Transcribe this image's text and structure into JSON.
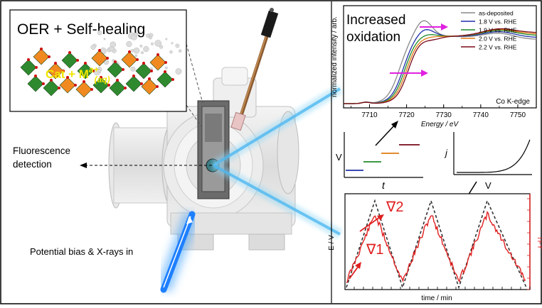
{
  "inset": {
    "title": "OER + Self-healing",
    "formula_cat": "Cat + M",
    "formula_sup": "a+",
    "formula_sub": "(aq)"
  },
  "labels": {
    "fluorescence": [
      "Fluorescence",
      "detection"
    ],
    "bias": "Potential bias & X-rays in"
  },
  "xanes": {
    "annotation": [
      "Increased",
      "oxidation"
    ],
    "ylabel": "normalized intensity / arb.",
    "xlabel": "Energy / eV",
    "edge": "Co K-edge",
    "xticks": [
      "7710",
      "7720",
      "7730",
      "7740",
      "7750"
    ],
    "legend": [
      {
        "name": "as-deposited",
        "color": "#888888"
      },
      {
        "name": "1.8 V vs. RHE",
        "color": "#1f2fa8"
      },
      {
        "name": "1.9 V vs. RHE",
        "color": "#1f8a2a"
      },
      {
        "name": "2.0 V vs. RHE",
        "color": "#e07a10"
      },
      {
        "name": "2.2 V vs. RHE",
        "color": "#7a0a1a"
      }
    ]
  },
  "steps": {
    "ylabel": "V",
    "xlabel": "t",
    "colors": [
      "#1f2fa8",
      "#1f8a2a",
      "#e07a10",
      "#7a0a1a"
    ]
  },
  "iv": {
    "ylabel": "j",
    "xlabel": "V"
  },
  "tri": {
    "ylabel": "E / V",
    "y2label": "TFY",
    "xlabel": "time / min",
    "grad2": "∇2",
    "grad1": "∇1",
    "red": "#e02020"
  },
  "colors": {
    "magenta": "#e020e0",
    "beam": "#7ecff2",
    "beam_in": "#3aa0ff"
  }
}
